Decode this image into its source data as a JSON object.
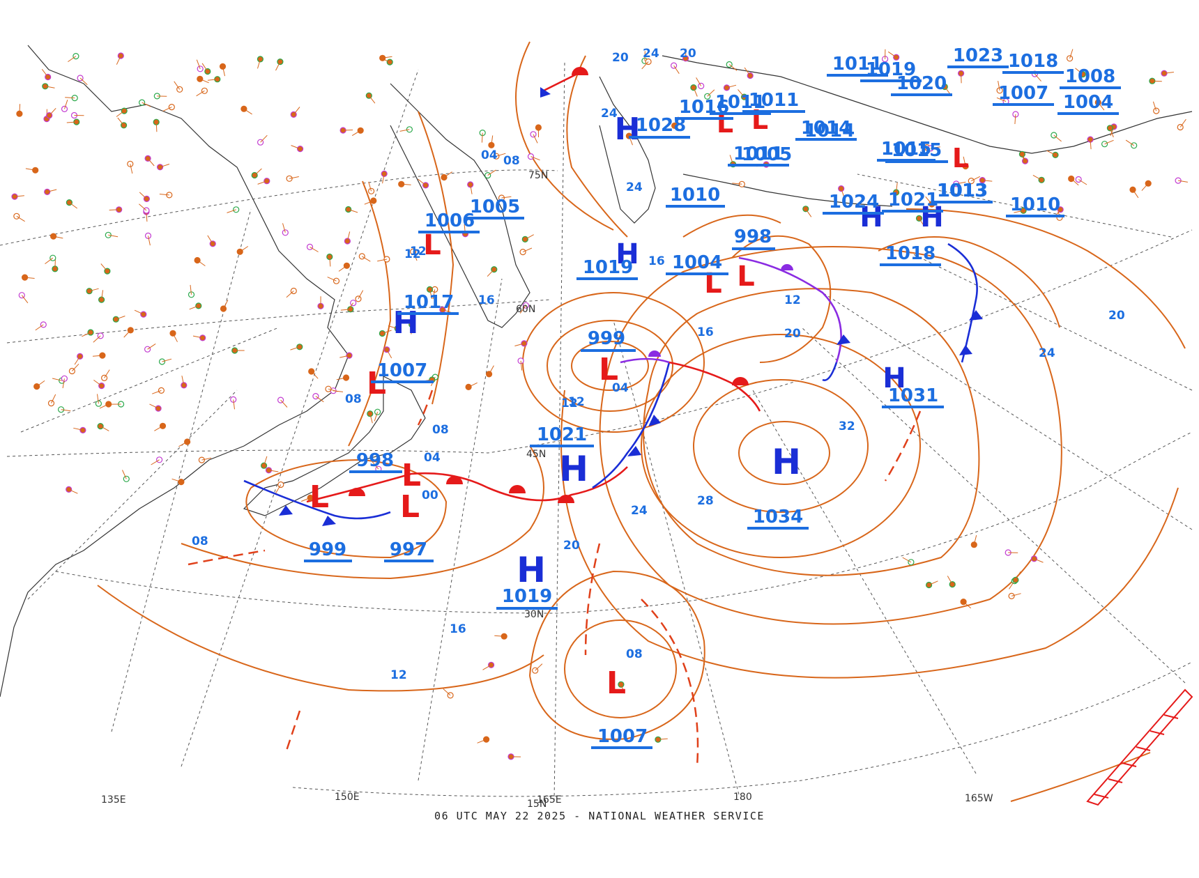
{
  "footer": "06 UTC MAY 22 2025 - NATIONAL WEATHER SERVICE",
  "colors": {
    "isobar": "#d8661a",
    "high": "#1a2ed6",
    "low": "#e51a1a",
    "pressure_label": "#1c6ee0",
    "warm_front": "#e51a1a",
    "cold_front": "#1a2ed6",
    "occluded_front": "#8a2be2",
    "coast": "#333333",
    "grid": "#555555"
  },
  "longitude_labels": [
    "135E",
    "150E",
    "165E",
    "180",
    "165W"
  ],
  "latitude_labels": [
    "75N",
    "60N",
    "45N",
    "30N",
    "15N"
  ],
  "highs": [
    {
      "symbol": "H",
      "pressure": "1021"
    },
    {
      "symbol": "H",
      "pressure": "1019"
    },
    {
      "symbol": "H",
      "pressure": "1034"
    },
    {
      "symbol": "H",
      "pressure": "1031"
    },
    {
      "symbol": "H",
      "pressure": "1017"
    },
    {
      "symbol": "H",
      "pressure": "1028"
    },
    {
      "symbol": "H",
      "pressure": "1024"
    },
    {
      "symbol": "H",
      "pressure": "1021"
    },
    {
      "symbol": "H",
      "pressure": "1019"
    }
  ],
  "lows": [
    {
      "symbol": "L",
      "pressure": "999"
    },
    {
      "symbol": "L",
      "pressure": "1007"
    },
    {
      "symbol": "L",
      "pressure": "998"
    },
    {
      "symbol": "L",
      "pressure": "997"
    },
    {
      "symbol": "L",
      "pressure": "1006"
    },
    {
      "symbol": "L",
      "pressure": "1004"
    },
    {
      "symbol": "L",
      "pressure": "998"
    },
    {
      "symbol": "L",
      "pressure": "1007"
    },
    {
      "symbol": "L",
      "pressure": "999"
    },
    {
      "symbol": "L",
      "pressure": "1011"
    },
    {
      "symbol": "L",
      "pressure": "1016"
    },
    {
      "symbol": "L",
      "pressure": "1015"
    }
  ],
  "pressure_labels": [
    "1010",
    "1005",
    "1013",
    "1010",
    "1018",
    "1020",
    "1014",
    "1011",
    "1011",
    "1004",
    "1023",
    "1018",
    "1007",
    "1008",
    "1019",
    "1011"
  ],
  "isobar_labels": [
    "20",
    "24",
    "20",
    "24",
    "16",
    "12",
    "08",
    "04",
    "00",
    "08",
    "12",
    "16",
    "20",
    "24",
    "28",
    "32",
    "20",
    "24",
    "16",
    "12",
    "04",
    "08",
    "12",
    "20",
    "12",
    "16",
    "08",
    "04",
    "08",
    "12",
    "24"
  ],
  "station_samples": [
    "1015",
    "1031",
    "1005",
    "1004",
    "1014",
    "1013"
  ]
}
